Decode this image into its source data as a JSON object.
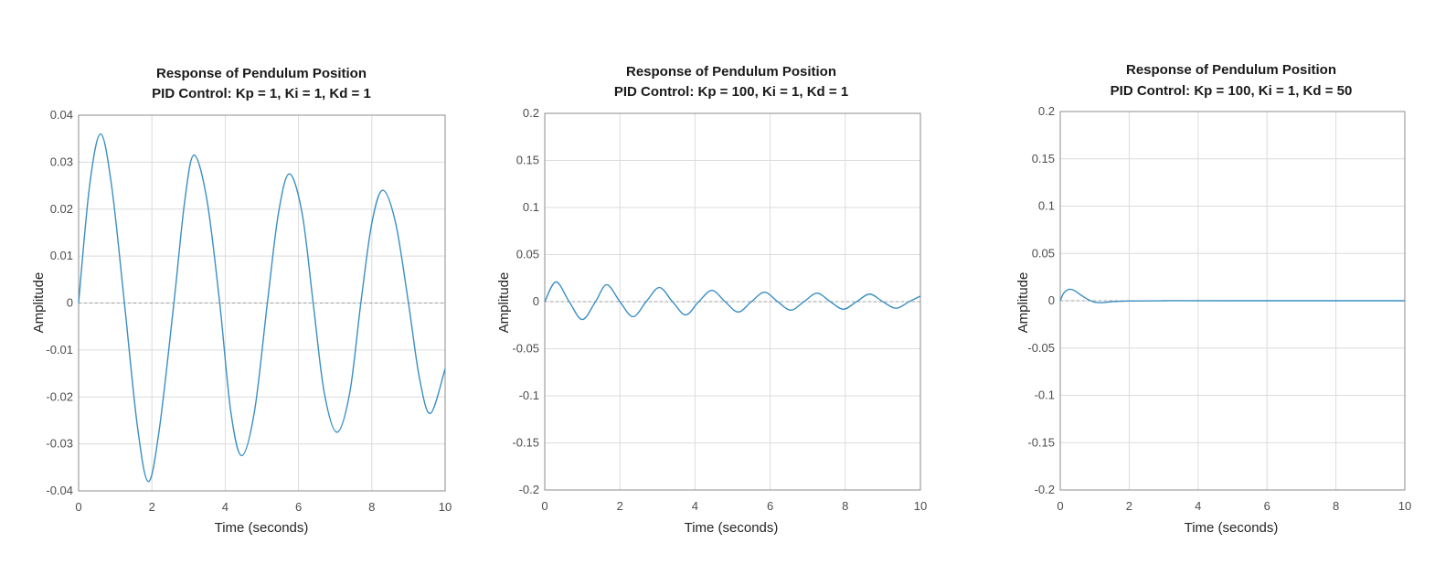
{
  "chart_data": [
    {
      "type": "line",
      "title": "Response of Pendulum Position",
      "subtitle": "PID Control: Kp = 1, Ki = 1, Kd = 1",
      "xlabel": "Time (seconds)",
      "ylabel": "Amplitude",
      "xlim": [
        0,
        10
      ],
      "ylim": [
        -0.04,
        0.04
      ],
      "xticks": [
        "0",
        "2",
        "4",
        "6",
        "8",
        "10"
      ],
      "yticks": [
        "0.04",
        "0.03",
        "0.02",
        "0.01",
        "0",
        "-0.01",
        "-0.02",
        "-0.03",
        "-0.04"
      ],
      "grid": true,
      "series_color": "#3a8fc2",
      "series": [
        {
          "x": [
            0,
            0.3,
            0.6,
            0.9,
            1.25,
            1.6,
            1.9,
            2.2,
            2.6,
            2.9,
            3.15,
            3.5,
            3.85,
            4.15,
            4.45,
            4.8,
            5.15,
            5.45,
            5.75,
            6.1,
            6.4,
            6.7,
            7.05,
            7.4,
            7.7,
            8.0,
            8.3,
            8.65,
            9.0,
            9.3,
            9.6,
            10.0
          ],
          "y": [
            0,
            0.025,
            0.036,
            0.025,
            0,
            -0.026,
            -0.038,
            -0.027,
            0,
            0.022,
            0.0315,
            0.022,
            0,
            -0.023,
            -0.0325,
            -0.023,
            0,
            0.019,
            0.0275,
            0.019,
            0,
            -0.019,
            -0.0275,
            -0.019,
            0,
            0.017,
            0.024,
            0.017,
            0,
            -0.016,
            -0.0235,
            -0.014
          ]
        }
      ]
    },
    {
      "type": "line",
      "title": "Response of Pendulum Position",
      "subtitle": "PID Control: Kp = 100, Ki = 1, Kd = 1",
      "xlabel": "Time (seconds)",
      "ylabel": "Amplitude",
      "xlim": [
        0,
        10
      ],
      "ylim": [
        -0.2,
        0.2
      ],
      "xticks": [
        "0",
        "2",
        "4",
        "6",
        "8",
        "10"
      ],
      "yticks": [
        "0.2",
        "0.15",
        "0.1",
        "0.05",
        "0",
        "-0.05",
        "-0.1",
        "-0.15",
        "-0.2"
      ],
      "grid": true,
      "series_color": "#3a8fc2",
      "series": [
        {
          "x": [
            0,
            0.3,
            0.65,
            1.0,
            1.35,
            1.65,
            2.0,
            2.35,
            2.7,
            3.05,
            3.4,
            3.75,
            4.1,
            4.45,
            4.8,
            5.15,
            5.5,
            5.85,
            6.2,
            6.55,
            6.9,
            7.25,
            7.6,
            7.95,
            8.3,
            8.65,
            9.0,
            9.35,
            9.7,
            10.0
          ],
          "y": [
            0,
            0.021,
            0,
            -0.019,
            0,
            0.018,
            0,
            -0.016,
            0,
            0.015,
            0,
            -0.014,
            0,
            0.012,
            0,
            -0.011,
            0,
            0.01,
            0,
            -0.009,
            0,
            0.009,
            0,
            -0.008,
            0,
            0.008,
            0,
            -0.007,
            0,
            0.006
          ]
        }
      ]
    },
    {
      "type": "line",
      "title": "Response of Pendulum Position",
      "subtitle": "PID Control: Kp = 100, Ki = 1, Kd = 50",
      "xlabel": "Time (seconds)",
      "ylabel": "Amplitude",
      "xlim": [
        0,
        10
      ],
      "ylim": [
        -0.2,
        0.2
      ],
      "xticks": [
        "0",
        "2",
        "4",
        "6",
        "8",
        "10"
      ],
      "yticks": [
        "0.2",
        "0.15",
        "0.1",
        "0.05",
        "0",
        "-0.05",
        "-0.1",
        "-0.15",
        "-0.2"
      ],
      "grid": true,
      "series_color": "#3a8fc2",
      "series": [
        {
          "x": [
            0,
            0.1,
            0.25,
            0.4,
            0.6,
            0.8,
            1.0,
            1.2,
            1.5,
            2.0,
            3.0,
            5.0,
            10.0
          ],
          "y": [
            0,
            0.008,
            0.012,
            0.011,
            0.006,
            0.0015,
            -0.0015,
            -0.002,
            -0.001,
            -0.0003,
            0,
            0,
            0
          ]
        }
      ]
    }
  ]
}
